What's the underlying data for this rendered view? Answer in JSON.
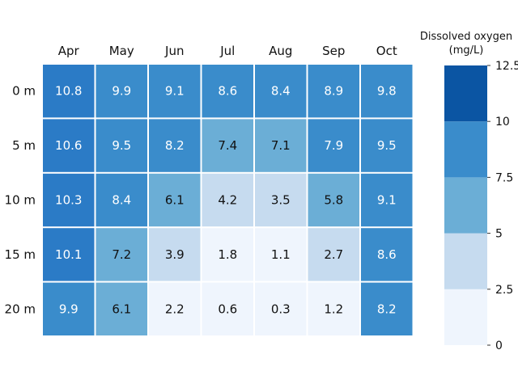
{
  "chart_data": {
    "type": "heatmap",
    "x_categories": [
      "Apr",
      "May",
      "Jun",
      "Jul",
      "Aug",
      "Sep",
      "Oct"
    ],
    "y_categories": [
      "0 m",
      "5 m",
      "10 m",
      "15 m",
      "20 m"
    ],
    "values": [
      [
        10.8,
        9.9,
        9.1,
        8.6,
        8.4,
        8.9,
        9.8
      ],
      [
        10.6,
        9.5,
        8.2,
        7.4,
        7.1,
        7.9,
        9.5
      ],
      [
        10.3,
        8.4,
        6.1,
        4.2,
        3.5,
        5.8,
        9.1
      ],
      [
        10.1,
        7.2,
        3.9,
        1.8,
        1.1,
        2.7,
        8.6
      ],
      [
        9.9,
        6.1,
        2.2,
        0.6,
        0.3,
        1.2,
        8.2
      ]
    ],
    "colorbar": {
      "title_line1": "Dissolved oxygen",
      "title_line2": "(mg/L)",
      "ticks": [
        "0",
        "2.5",
        "5",
        "7.5",
        "10",
        "12.5"
      ],
      "bounds": [
        0,
        2.5,
        5,
        7.5,
        10,
        12.5
      ],
      "colors": [
        "#eff5fd",
        "#c6dbef",
        "#6baed6",
        "#3a8ccb",
        "#2b7bc6"
      ],
      "top_color": "#0b55a3"
    },
    "text_color_dark": "#111111",
    "text_color_light": "#ffffff"
  }
}
